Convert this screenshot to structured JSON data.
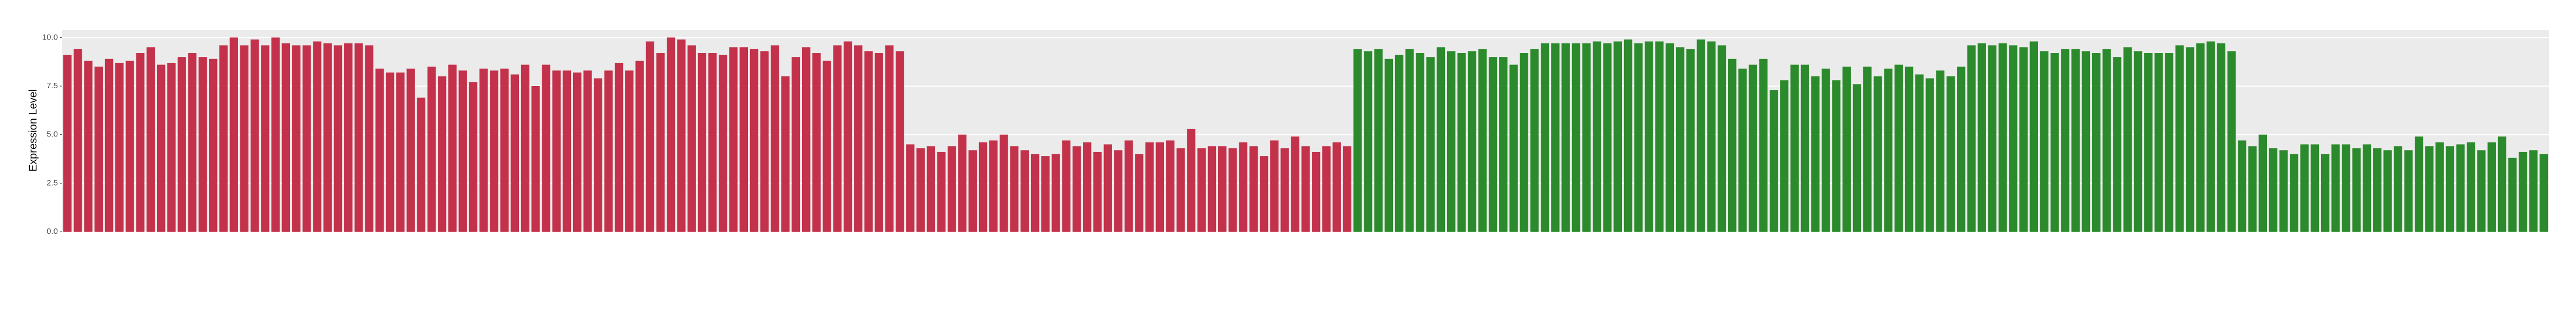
{
  "chart_data": {
    "type": "bar",
    "y_label": "Expression Level",
    "ylim": [
      0,
      10.4
    ],
    "yticks": [
      {
        "value": 0,
        "label": "0.0"
      },
      {
        "value": 2.5,
        "label": "2.5"
      },
      {
        "value": 5,
        "label": "5.0"
      },
      {
        "value": 7.5,
        "label": "7.5"
      },
      {
        "value": 10,
        "label": "10.0"
      }
    ],
    "grid": true,
    "categories": [
      null,
      null,
      null,
      null,
      null,
      null,
      null,
      null,
      null,
      null,
      null,
      null,
      null,
      null,
      null,
      null,
      null,
      null,
      null,
      null,
      null,
      null,
      null,
      null,
      null,
      null,
      null,
      null,
      null,
      null,
      null,
      null,
      null,
      null,
      null,
      null,
      null,
      null,
      null,
      null,
      null,
      null,
      null,
      null,
      null,
      null,
      null,
      null,
      null,
      null,
      null,
      null,
      null,
      null,
      null,
      null,
      null,
      null,
      null,
      null,
      null,
      null,
      null,
      null,
      null,
      null,
      null,
      null,
      null,
      null,
      null,
      null,
      null,
      null,
      null,
      null,
      null,
      null,
      null,
      null,
      null,
      null,
      null,
      null,
      null,
      null,
      null,
      null,
      null,
      null,
      null,
      null,
      null,
      null,
      null,
      null,
      null,
      null,
      null,
      null,
      null,
      null,
      null,
      null,
      null,
      null,
      null,
      null,
      null,
      null,
      null,
      null,
      null,
      null,
      null,
      null,
      null,
      null,
      null,
      null,
      null,
      null,
      null,
      null,
      null,
      null,
      null,
      null,
      null,
      null,
      null,
      null,
      null,
      null,
      null,
      null,
      null,
      null,
      null,
      null,
      null,
      null,
      null,
      null,
      null,
      null,
      null,
      null,
      null,
      null,
      null,
      null,
      null,
      null,
      null,
      null,
      null,
      null,
      null,
      null,
      null,
      null,
      null,
      null,
      null,
      null,
      null,
      null,
      null,
      null,
      null,
      null,
      null,
      null,
      null,
      null,
      null,
      null,
      null,
      null,
      null,
      null,
      null,
      null,
      null,
      null,
      null,
      null,
      null,
      null,
      null,
      null,
      null,
      null,
      null,
      null,
      null,
      null,
      null,
      null,
      null,
      null,
      null,
      null,
      null,
      null,
      null,
      null,
      null,
      null,
      null,
      null,
      null,
      null,
      null,
      null,
      null,
      null,
      null,
      null,
      null,
      null,
      null,
      null,
      null,
      null,
      null,
      null,
      null,
      null,
      null,
      null,
      null,
      null,
      null,
      null,
      null,
      null,
      null
    ],
    "values": [
      9.1,
      9.4,
      8.8,
      8.5,
      8.9,
      8.7,
      8.8,
      9.2,
      9.5,
      8.6,
      8.7,
      9.0,
      9.2,
      9.0,
      8.9,
      9.6,
      10.0,
      9.6,
      9.9,
      9.6,
      10.0,
      9.7,
      9.6,
      9.6,
      9.8,
      9.7,
      9.6,
      9.7,
      9.7,
      9.6,
      8.4,
      8.2,
      8.2,
      8.4,
      6.9,
      8.5,
      8.0,
      8.6,
      8.3,
      7.7,
      8.4,
      8.3,
      8.4,
      8.1,
      8.6,
      7.5,
      8.6,
      8.3,
      8.3,
      8.2,
      8.3,
      7.9,
      8.3,
      8.7,
      8.3,
      8.8,
      9.8,
      9.2,
      10.0,
      9.9,
      9.6,
      9.2,
      9.2,
      9.1,
      9.5,
      9.5,
      9.4,
      9.3,
      9.6,
      8.0,
      9.0,
      9.5,
      9.2,
      8.8,
      9.6,
      9.8,
      9.6,
      9.3,
      9.2,
      9.6,
      9.3,
      4.5,
      4.3,
      4.4,
      4.1,
      4.4,
      5.0,
      4.2,
      4.6,
      4.7,
      5.0,
      4.4,
      4.2,
      4.0,
      3.9,
      4.0,
      4.7,
      4.4,
      4.6,
      4.1,
      4.5,
      4.2,
      4.7,
      4.0,
      4.6,
      4.6,
      4.7,
      4.3,
      5.3,
      4.3,
      4.4,
      4.4,
      4.3,
      4.6,
      4.4,
      3.9,
      4.7,
      4.3,
      4.9,
      4.4,
      4.1,
      4.4,
      4.6,
      4.4,
      9.4,
      9.3,
      9.4,
      8.9,
      9.1,
      9.4,
      9.2,
      9.0,
      9.5,
      9.3,
      9.2,
      9.3,
      9.4,
      9.0,
      9.0,
      8.6,
      9.2,
      9.4,
      9.7,
      9.7,
      9.7,
      9.7,
      9.7,
      9.8,
      9.7,
      9.8,
      9.9,
      9.7,
      9.8,
      9.8,
      9.7,
      9.5,
      9.4,
      9.9,
      9.8,
      9.6,
      8.9,
      8.4,
      8.6,
      8.9,
      7.3,
      7.8,
      8.6,
      8.6,
      8.0,
      8.4,
      7.8,
      8.5,
      7.6,
      8.5,
      8.0,
      8.4,
      8.6,
      8.5,
      8.1,
      7.9,
      8.3,
      8.0,
      8.5,
      9.6,
      9.7,
      9.6,
      9.7,
      9.6,
      9.5,
      9.8,
      9.3,
      9.2,
      9.4,
      9.4,
      9.3,
      9.2,
      9.4,
      9.0,
      9.5,
      9.3,
      9.2,
      9.2,
      9.2,
      9.6,
      9.5,
      9.7,
      9.8,
      9.7,
      9.3,
      4.7,
      4.4,
      5.0,
      4.3,
      4.2,
      4.0,
      4.5,
      4.5,
      4.0,
      4.5,
      4.5,
      4.3,
      4.5,
      4.3,
      4.2,
      4.4,
      4.2,
      4.9,
      4.4,
      4.6,
      4.4,
      4.5,
      4.6,
      4.2,
      4.6,
      4.9,
      3.8,
      4.1,
      4.2,
      4.0
    ],
    "colors": [
      "#c3314a",
      "#c3314a",
      "#c3314a",
      "#c3314a",
      "#c3314a",
      "#c3314a",
      "#c3314a",
      "#c3314a",
      "#c3314a",
      "#c3314a",
      "#c3314a",
      "#c3314a",
      "#c3314a",
      "#c3314a",
      "#c3314a",
      "#c3314a",
      "#c3314a",
      "#c3314a",
      "#c3314a",
      "#c3314a",
      "#c3314a",
      "#c3314a",
      "#c3314a",
      "#c3314a",
      "#c3314a",
      "#c3314a",
      "#c3314a",
      "#c3314a",
      "#c3314a",
      "#c3314a",
      "#c3314a",
      "#c3314a",
      "#c3314a",
      "#c3314a",
      "#c3314a",
      "#c3314a",
      "#c3314a",
      "#c3314a",
      "#c3314a",
      "#c3314a",
      "#c3314a",
      "#c3314a",
      "#c3314a",
      "#c3314a",
      "#c3314a",
      "#c3314a",
      "#c3314a",
      "#c3314a",
      "#c3314a",
      "#c3314a",
      "#c3314a",
      "#c3314a",
      "#c3314a",
      "#c3314a",
      "#c3314a",
      "#c3314a",
      "#c3314a",
      "#c3314a",
      "#c3314a",
      "#c3314a",
      "#c3314a",
      "#c3314a",
      "#c3314a",
      "#c3314a",
      "#c3314a",
      "#c3314a",
      "#c3314a",
      "#c3314a",
      "#c3314a",
      "#c3314a",
      "#c3314a",
      "#c3314a",
      "#c3314a",
      "#c3314a",
      "#c3314a",
      "#c3314a",
      "#c3314a",
      "#c3314a",
      "#c3314a",
      "#c3314a",
      "#c3314a",
      "#c3314a",
      "#c3314a",
      "#c3314a",
      "#c3314a",
      "#c3314a",
      "#c3314a",
      "#c3314a",
      "#c3314a",
      "#c3314a",
      "#c3314a",
      "#c3314a",
      "#c3314a",
      "#c3314a",
      "#c3314a",
      "#c3314a",
      "#c3314a",
      "#c3314a",
      "#c3314a",
      "#c3314a",
      "#c3314a",
      "#c3314a",
      "#c3314a",
      "#c3314a",
      "#c3314a",
      "#c3314a",
      "#c3314a",
      "#c3314a",
      "#c3314a",
      "#c3314a",
      "#c3314a",
      "#c3314a",
      "#c3314a",
      "#c3314a",
      "#c3314a",
      "#c3314a",
      "#c3314a",
      "#c3314a",
      "#c3314a",
      "#c3314a",
      "#c3314a",
      "#c3314a",
      "#c3314a",
      "#c3314a",
      "#2b8a2b",
      "#2b8a2b",
      "#2b8a2b",
      "#2b8a2b",
      "#2b8a2b",
      "#2b8a2b",
      "#2b8a2b",
      "#2b8a2b",
      "#2b8a2b",
      "#2b8a2b",
      "#2b8a2b",
      "#2b8a2b",
      "#2b8a2b",
      "#2b8a2b",
      "#2b8a2b",
      "#2b8a2b",
      "#2b8a2b",
      "#2b8a2b",
      "#2b8a2b",
      "#2b8a2b",
      "#2b8a2b",
      "#2b8a2b",
      "#2b8a2b",
      "#2b8a2b",
      "#2b8a2b",
      "#2b8a2b",
      "#2b8a2b",
      "#2b8a2b",
      "#2b8a2b",
      "#2b8a2b",
      "#2b8a2b",
      "#2b8a2b",
      "#2b8a2b",
      "#2b8a2b",
      "#2b8a2b",
      "#2b8a2b",
      "#2b8a2b",
      "#2b8a2b",
      "#2b8a2b",
      "#2b8a2b",
      "#2b8a2b",
      "#2b8a2b",
      "#2b8a2b",
      "#2b8a2b",
      "#2b8a2b",
      "#2b8a2b",
      "#2b8a2b",
      "#2b8a2b",
      "#2b8a2b",
      "#2b8a2b",
      "#2b8a2b",
      "#2b8a2b",
      "#2b8a2b",
      "#2b8a2b",
      "#2b8a2b",
      "#2b8a2b",
      "#2b8a2b",
      "#2b8a2b",
      "#2b8a2b",
      "#2b8a2b",
      "#2b8a2b",
      "#2b8a2b",
      "#2b8a2b",
      "#2b8a2b",
      "#2b8a2b",
      "#2b8a2b",
      "#2b8a2b",
      "#2b8a2b",
      "#2b8a2b",
      "#2b8a2b",
      "#2b8a2b",
      "#2b8a2b",
      "#2b8a2b",
      "#2b8a2b",
      "#2b8a2b",
      "#2b8a2b",
      "#2b8a2b",
      "#2b8a2b",
      "#2b8a2b",
      "#2b8a2b",
      "#2b8a2b",
      "#2b8a2b",
      "#2b8a2b",
      "#2b8a2b",
      "#2b8a2b",
      "#2b8a2b",
      "#2b8a2b",
      "#2b8a2b",
      "#2b8a2b",
      "#2b8a2b",
      "#2b8a2b",
      "#2b8a2b",
      "#2b8a2b",
      "#2b8a2b",
      "#2b8a2b",
      "#2b8a2b",
      "#2b8a2b",
      "#2b8a2b",
      "#2b8a2b",
      "#2b8a2b",
      "#2b8a2b",
      "#2b8a2b",
      "#2b8a2b",
      "#2b8a2b",
      "#2b8a2b",
      "#2b8a2b",
      "#2b8a2b",
      "#2b8a2b",
      "#2b8a2b",
      "#2b8a2b",
      "#2b8a2b",
      "#2b8a2b",
      "#2b8a2b",
      "#2b8a2b",
      "#2b8a2b"
    ]
  }
}
